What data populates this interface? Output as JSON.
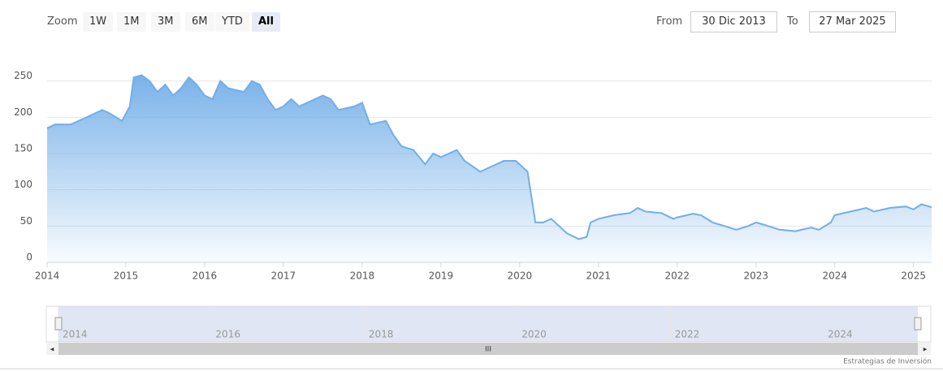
{
  "toolbar": {
    "zoom_label": "Zoom",
    "buttons": [
      "1W",
      "1M",
      "3M",
      "6M",
      "YTD",
      "All"
    ],
    "selected": 5,
    "from_label": "From",
    "from": "30 Dic 2013",
    "to_label": "To",
    "to": "27 Mar 2025"
  },
  "chart_data": {
    "type": "area",
    "color": "#72aee8",
    "grid": true,
    "x": [
      2014.0,
      2014.1,
      2014.3,
      2014.5,
      2014.7,
      2014.8,
      2014.95,
      2015.0,
      2015.05,
      2015.1,
      2015.2,
      2015.3,
      2015.4,
      2015.5,
      2015.6,
      2015.7,
      2015.8,
      2015.9,
      2016.0,
      2016.1,
      2016.2,
      2016.3,
      2016.5,
      2016.6,
      2016.7,
      2016.8,
      2016.9,
      2017.0,
      2017.1,
      2017.2,
      2017.3,
      2017.5,
      2017.6,
      2017.7,
      2017.9,
      2018.0,
      2018.1,
      2018.3,
      2018.4,
      2018.5,
      2018.65,
      2018.8,
      2018.9,
      2019.0,
      2019.2,
      2019.3,
      2019.5,
      2019.6,
      2019.8,
      2019.95,
      2020.1,
      2020.2,
      2020.3,
      2020.4,
      2020.5,
      2020.6,
      2020.75,
      2020.85,
      2020.9,
      2021.0,
      2021.2,
      2021.4,
      2021.5,
      2021.6,
      2021.8,
      2021.95,
      2022.0,
      2022.2,
      2022.3,
      2022.45,
      2022.6,
      2022.75,
      2022.9,
      2023.0,
      2023.1,
      2023.3,
      2023.5,
      2023.7,
      2023.8,
      2023.95,
      2024.0,
      2024.2,
      2024.4,
      2024.5,
      2024.7,
      2024.9,
      2025.0,
      2025.1,
      2025.23
    ],
    "values": [
      185,
      190,
      190,
      200,
      210,
      205,
      195,
      205,
      215,
      255,
      258,
      250,
      235,
      245,
      230,
      240,
      255,
      245,
      230,
      225,
      250,
      240,
      235,
      250,
      245,
      225,
      210,
      215,
      225,
      215,
      220,
      230,
      225,
      210,
      215,
      220,
      190,
      195,
      175,
      160,
      155,
      135,
      150,
      145,
      155,
      140,
      125,
      130,
      140,
      140,
      125,
      55,
      55,
      60,
      50,
      40,
      32,
      35,
      55,
      60,
      65,
      68,
      75,
      70,
      68,
      60,
      62,
      67,
      65,
      55,
      50,
      45,
      50,
      55,
      52,
      45,
      43,
      48,
      45,
      55,
      65,
      70,
      75,
      70,
      75,
      77,
      73,
      80,
      76
    ],
    "xlim": [
      2014,
      2025.23
    ],
    "xticks": [
      2014,
      2015,
      2016,
      2017,
      2018,
      2019,
      2020,
      2021,
      2022,
      2023,
      2024,
      2025
    ],
    "ylim": [
      0,
      262
    ],
    "yticks": [
      0,
      50,
      100,
      150,
      200,
      250
    ]
  },
  "navigator": {
    "xticks": [
      2014,
      2016,
      2018,
      2020,
      2022,
      2024
    ]
  },
  "credits": "Estrategias de Inversión"
}
